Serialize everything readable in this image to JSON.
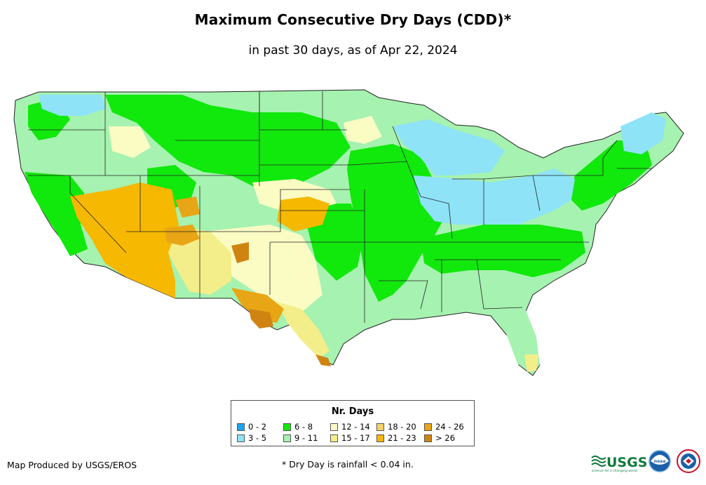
{
  "title": "Maximum Consecutive Dry Days (CDD)*",
  "subtitle": "in past 30 days, as of Apr 22, 2024",
  "legend": {
    "title": "Nr. Days",
    "items": [
      {
        "label": "0 - 2",
        "color": "#1aa5f0"
      },
      {
        "label": "3 - 5",
        "color": "#8ee3f7"
      },
      {
        "label": "6 - 8",
        "color": "#11e80c"
      },
      {
        "label": "9 - 11",
        "color": "#a6f2b0"
      },
      {
        "label": "12 - 14",
        "color": "#fbfbc4"
      },
      {
        "label": "15 - 17",
        "color": "#f4ee8a"
      },
      {
        "label": "18 - 20",
        "color": "#f5d36a"
      },
      {
        "label": "21 - 23",
        "color": "#f6b800"
      },
      {
        "label": "24 - 26",
        "color": "#e8a515"
      },
      {
        "label": "> 26",
        "color": "#cf8412"
      }
    ]
  },
  "credit": "Map Produced by USGS/EROS",
  "footnote": "* Dry Day is rainfall < 0.04 in.",
  "logos": {
    "usgs": "USGS",
    "usgs_tagline": "science for a changing world",
    "noaa": "noaa"
  }
}
